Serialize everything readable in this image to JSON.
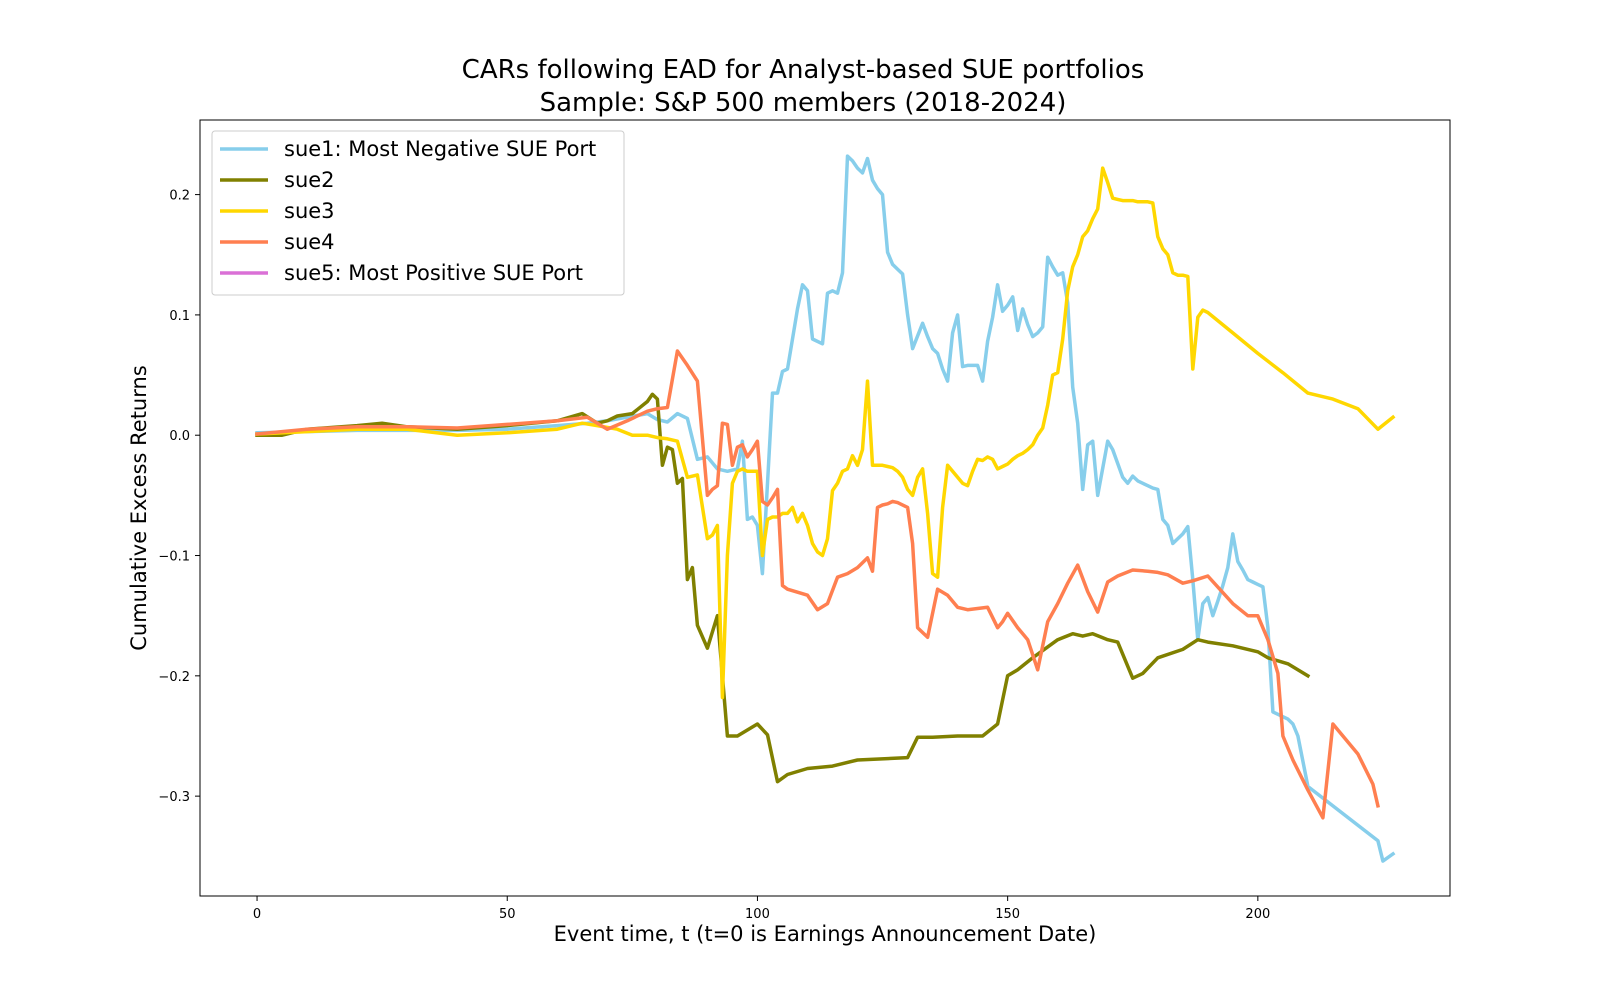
{
  "chart_data": {
    "type": "line",
    "title": [
      "CARs following EAD for Analyst-based SUE portfolios",
      "Sample: S&P 500 members (2018-2024)"
    ],
    "xlabel": "Event time, t (t=0 is Earnings Announcement Date)",
    "ylabel": "Cumulative Excess Returns",
    "xlim": [
      -11.4,
      238.4
    ],
    "ylim": [
      -0.383,
      0.262
    ],
    "xticks": [
      0,
      50,
      100,
      150,
      200
    ],
    "yticks": [
      -0.3,
      -0.2,
      -0.1,
      0.0,
      0.1,
      0.2
    ],
    "xtick_labels": [
      "0",
      "50",
      "100",
      "150",
      "200"
    ],
    "ytick_labels": [
      "−0.3",
      "−0.2",
      "−0.1",
      "0.0",
      "0.1",
      "0.2"
    ],
    "grid": false,
    "legend_position": "upper-left",
    "series": [
      {
        "name": "sue1: Most Negative SUE Port",
        "color": "#87ceeb",
        "x": [
          0,
          10,
          20,
          30,
          40,
          50,
          60,
          66,
          70,
          74,
          78,
          80,
          82,
          84,
          86,
          88,
          90,
          92,
          94,
          96,
          97,
          98,
          99,
          100,
          101,
          102,
          103,
          104,
          105,
          106,
          107,
          108,
          109,
          110,
          111,
          113,
          114,
          115,
          116,
          117,
          118,
          119,
          120,
          121,
          122,
          123,
          124,
          125,
          126,
          127,
          128,
          129,
          130,
          131,
          133,
          134,
          135,
          136,
          137,
          138,
          139,
          140,
          141,
          142,
          144,
          145,
          146,
          147,
          148,
          149,
          150,
          151,
          152,
          153,
          154,
          155,
          156,
          157,
          158,
          159,
          160,
          161,
          162,
          163,
          164,
          165,
          166,
          167,
          168,
          170,
          171,
          173,
          174,
          175,
          176,
          177,
          178,
          179,
          180,
          181,
          182,
          183,
          185,
          186,
          187,
          188,
          189,
          190,
          191,
          192,
          193,
          194,
          195,
          196,
          197,
          198,
          199,
          200,
          201,
          202,
          203,
          204,
          205,
          206,
          207,
          208,
          210,
          224,
          225,
          227
        ],
        "values": [
          0.002,
          0.003,
          0.004,
          0.004,
          0.004,
          0.005,
          0.008,
          0.01,
          0.012,
          0.015,
          0.018,
          0.013,
          0.011,
          0.018,
          0.014,
          -0.02,
          -0.018,
          -0.028,
          -0.03,
          -0.028,
          -0.005,
          -0.07,
          -0.068,
          -0.075,
          -0.115,
          -0.04,
          0.035,
          0.035,
          0.053,
          0.055,
          0.08,
          0.105,
          0.125,
          0.12,
          0.08,
          0.076,
          0.118,
          0.12,
          0.118,
          0.135,
          0.232,
          0.228,
          0.222,
          0.218,
          0.23,
          0.212,
          0.205,
          0.2,
          0.152,
          0.142,
          0.138,
          0.134,
          0.1,
          0.072,
          0.093,
          0.082,
          0.072,
          0.068,
          0.055,
          0.045,
          0.085,
          0.1,
          0.057,
          0.058,
          0.058,
          0.045,
          0.078,
          0.098,
          0.125,
          0.103,
          0.108,
          0.115,
          0.087,
          0.105,
          0.092,
          0.082,
          0.085,
          0.09,
          0.148,
          0.14,
          0.133,
          0.135,
          0.11,
          0.04,
          0.01,
          -0.045,
          -0.008,
          -0.005,
          -0.05,
          -0.005,
          -0.012,
          -0.035,
          -0.04,
          -0.034,
          -0.038,
          -0.04,
          -0.042,
          -0.044,
          -0.045,
          -0.07,
          -0.075,
          -0.09,
          -0.082,
          -0.076,
          -0.12,
          -0.17,
          -0.14,
          -0.135,
          -0.15,
          -0.138,
          -0.125,
          -0.11,
          -0.082,
          -0.105,
          -0.112,
          -0.12,
          -0.122,
          -0.124,
          -0.126,
          -0.16,
          -0.23,
          -0.232,
          -0.234,
          -0.236,
          -0.24,
          -0.25,
          -0.292,
          -0.337,
          -0.354,
          -0.348
        ]
      },
      {
        "name": "sue2",
        "color": "#808000",
        "x": [
          0,
          5,
          10,
          20,
          25,
          30,
          40,
          50,
          60,
          65,
          68,
          70,
          72,
          75,
          78,
          79,
          80,
          81,
          82,
          83,
          84,
          85,
          86,
          87,
          88,
          90,
          92,
          94,
          96,
          98,
          100,
          102,
          104,
          106,
          110,
          115,
          120,
          130,
          132,
          135,
          140,
          145,
          148,
          150,
          152,
          155,
          160,
          163,
          165,
          167,
          170,
          172,
          175,
          177,
          180,
          185,
          188,
          190,
          195,
          200,
          202,
          206,
          210
        ],
        "values": [
          0.0,
          0.0,
          0.005,
          0.008,
          0.01,
          0.007,
          0.005,
          0.008,
          0.012,
          0.018,
          0.01,
          0.012,
          0.016,
          0.018,
          0.028,
          0.034,
          0.03,
          -0.025,
          -0.01,
          -0.012,
          -0.04,
          -0.036,
          -0.12,
          -0.11,
          -0.158,
          -0.177,
          -0.15,
          -0.25,
          -0.25,
          -0.245,
          -0.24,
          -0.249,
          -0.288,
          -0.282,
          -0.277,
          -0.275,
          -0.27,
          -0.268,
          -0.251,
          -0.251,
          -0.25,
          -0.25,
          -0.24,
          -0.2,
          -0.195,
          -0.185,
          -0.17,
          -0.165,
          -0.167,
          -0.165,
          -0.17,
          -0.172,
          -0.202,
          -0.198,
          -0.185,
          -0.178,
          -0.17,
          -0.172,
          -0.175,
          -0.18,
          -0.185,
          -0.19,
          -0.2
        ]
      },
      {
        "name": "sue3",
        "color": "#ffd700",
        "x": [
          0,
          10,
          20,
          30,
          40,
          50,
          60,
          65,
          68,
          72,
          75,
          78,
          80,
          82,
          84,
          86,
          88,
          90,
          91,
          92,
          93,
          94,
          95,
          96,
          97,
          98,
          99,
          100,
          101,
          102,
          103,
          104,
          105,
          106,
          107,
          108,
          109,
          110,
          111,
          112,
          113,
          114,
          115,
          116,
          117,
          118,
          119,
          120,
          121,
          122,
          123,
          124,
          125,
          126,
          127,
          128,
          129,
          130,
          131,
          132,
          133,
          134,
          135,
          136,
          137,
          138,
          139,
          140,
          141,
          142,
          143,
          144,
          145,
          146,
          147,
          148,
          149,
          150,
          151,
          152,
          153,
          154,
          155,
          156,
          157,
          158,
          159,
          160,
          161,
          162,
          163,
          164,
          165,
          166,
          167,
          168,
          169,
          170,
          171,
          172,
          173,
          174,
          175,
          176,
          177,
          178,
          179,
          180,
          181,
          182,
          183,
          184,
          185,
          186,
          187,
          188,
          189,
          190,
          195,
          200,
          205,
          210,
          215,
          220,
          224,
          227
        ],
        "values": [
          0.001,
          0.003,
          0.005,
          0.005,
          0.0,
          0.002,
          0.005,
          0.01,
          0.008,
          0.005,
          0.0,
          0.0,
          -0.002,
          -0.003,
          -0.005,
          -0.035,
          -0.033,
          -0.086,
          -0.083,
          -0.075,
          -0.218,
          -0.1,
          -0.04,
          -0.03,
          -0.028,
          -0.03,
          -0.03,
          -0.03,
          -0.1,
          -0.07,
          -0.068,
          -0.068,
          -0.065,
          -0.065,
          -0.06,
          -0.072,
          -0.065,
          -0.075,
          -0.09,
          -0.097,
          -0.1,
          -0.086,
          -0.046,
          -0.04,
          -0.03,
          -0.028,
          -0.017,
          -0.025,
          -0.012,
          0.045,
          -0.025,
          -0.025,
          -0.025,
          -0.026,
          -0.027,
          -0.03,
          -0.035,
          -0.045,
          -0.05,
          -0.035,
          -0.028,
          -0.065,
          -0.115,
          -0.118,
          -0.06,
          -0.025,
          -0.03,
          -0.035,
          -0.04,
          -0.042,
          -0.03,
          -0.02,
          -0.021,
          -0.018,
          -0.02,
          -0.028,
          -0.026,
          -0.024,
          -0.02,
          -0.017,
          -0.015,
          -0.012,
          -0.008,
          0.0,
          0.006,
          0.025,
          0.05,
          0.052,
          0.08,
          0.12,
          0.14,
          0.15,
          0.165,
          0.17,
          0.18,
          0.188,
          0.222,
          0.21,
          0.197,
          0.196,
          0.195,
          0.195,
          0.195,
          0.194,
          0.194,
          0.194,
          0.193,
          0.165,
          0.155,
          0.15,
          0.135,
          0.133,
          0.133,
          0.132,
          0.055,
          0.098,
          0.104,
          0.102,
          0.085,
          0.068,
          0.052,
          0.035,
          0.03,
          0.022,
          0.005,
          0.015
        ]
      },
      {
        "name": "sue4",
        "color": "#ff7f50",
        "x": [
          0,
          10,
          20,
          30,
          40,
          50,
          60,
          66,
          70,
          74,
          78,
          80,
          82,
          84,
          86,
          88,
          90,
          91,
          92,
          93,
          94,
          95,
          96,
          97,
          98,
          99,
          100,
          101,
          102,
          103,
          104,
          105,
          106,
          110,
          112,
          114,
          116,
          118,
          120,
          122,
          123,
          124,
          125,
          126,
          127,
          128,
          130,
          131,
          132,
          134,
          136,
          138,
          140,
          142,
          144,
          146,
          148,
          149,
          150,
          152,
          154,
          156,
          158,
          160,
          162,
          164,
          166,
          168,
          170,
          172,
          175,
          178,
          180,
          182,
          185,
          187,
          190,
          195,
          198,
          200,
          202,
          204,
          205,
          207,
          210,
          213,
          215,
          217,
          220,
          223,
          224
        ],
        "values": [
          0.001,
          0.005,
          0.007,
          0.007,
          0.006,
          0.009,
          0.012,
          0.015,
          0.005,
          0.012,
          0.02,
          0.022,
          0.023,
          0.07,
          0.058,
          0.045,
          -0.05,
          -0.045,
          -0.042,
          0.01,
          0.009,
          -0.025,
          -0.01,
          -0.008,
          -0.018,
          -0.012,
          -0.005,
          -0.055,
          -0.058,
          -0.052,
          -0.045,
          -0.125,
          -0.128,
          -0.133,
          -0.145,
          -0.14,
          -0.118,
          -0.115,
          -0.11,
          -0.102,
          -0.113,
          -0.06,
          -0.058,
          -0.057,
          -0.055,
          -0.056,
          -0.06,
          -0.09,
          -0.16,
          -0.168,
          -0.128,
          -0.133,
          -0.143,
          -0.145,
          -0.144,
          -0.143,
          -0.16,
          -0.155,
          -0.148,
          -0.16,
          -0.17,
          -0.195,
          -0.155,
          -0.14,
          -0.123,
          -0.108,
          -0.13,
          -0.147,
          -0.122,
          -0.117,
          -0.112,
          -0.113,
          -0.114,
          -0.116,
          -0.123,
          -0.121,
          -0.117,
          -0.14,
          -0.15,
          -0.15,
          -0.17,
          -0.198,
          -0.25,
          -0.27,
          -0.295,
          -0.318,
          -0.24,
          -0.25,
          -0.265,
          -0.29,
          -0.308
        ]
      },
      {
        "name": "sue5: Most Positive SUE Port",
        "color": "#da70d6",
        "x": [],
        "values": []
      }
    ]
  }
}
